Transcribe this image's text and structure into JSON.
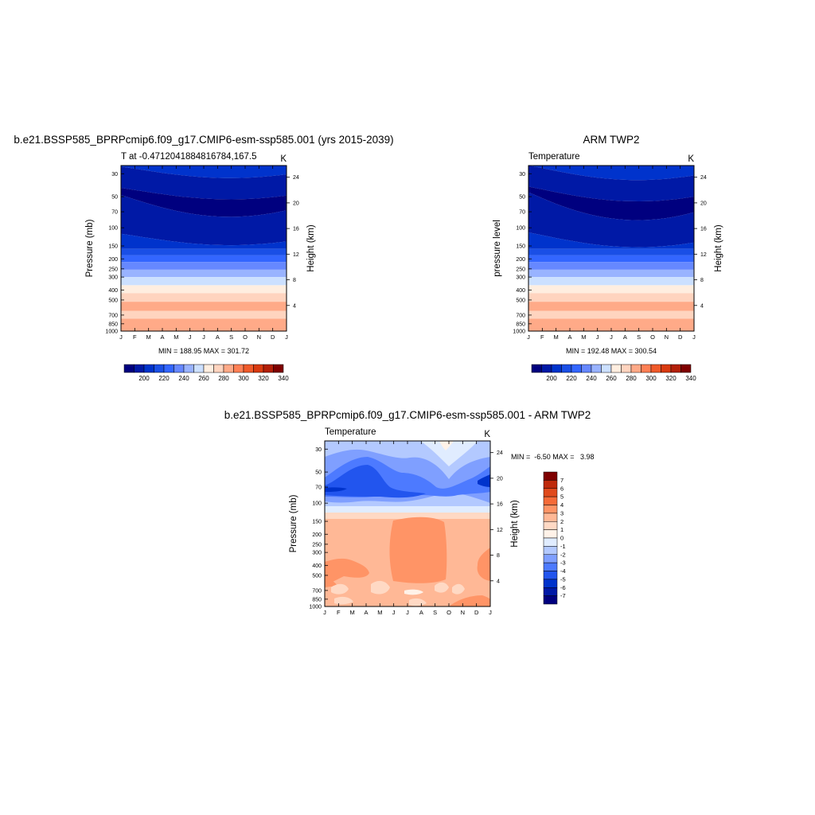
{
  "palette": {
    "temperature": [
      "#00007f",
      "#0019a6",
      "#0033cc",
      "#1a4fe6",
      "#3366ff",
      "#6688ff",
      "#99b3ff",
      "#cce0ff",
      "#ffeee0",
      "#ffd4bf",
      "#ffaa88",
      "#ff8055",
      "#f05a2a",
      "#d93a10",
      "#b31f08",
      "#7f0000"
    ],
    "difference": [
      "#00007f",
      "#0019a6",
      "#0033cc",
      "#2255ee",
      "#4d7aff",
      "#7f9fff",
      "#b3c9ff",
      "#e0ecff",
      "#fff2e8",
      "#ffd9c4",
      "#ffb896",
      "#ff9466",
      "#f56b38",
      "#e04a1c",
      "#bf2a0b",
      "#7f0000"
    ]
  },
  "chart_data": [
    {
      "type": "heatmap",
      "id": "model",
      "title": "b.e21.BSSP585_BPRPcmip6.f09_g17.CMIP6-esm-ssp585.001 (yrs 2015-2039)",
      "left_label": "T at -0.4712041884816784,167.5",
      "right_label": "K",
      "ylabel": "Pressure (mb)",
      "ylabel_right": "Height (km)",
      "x_ticks": [
        "J",
        "F",
        "M",
        "A",
        "M",
        "J",
        "J",
        "A",
        "S",
        "O",
        "N",
        "D",
        "J"
      ],
      "y_ticks": [
        30,
        50,
        70,
        100,
        150,
        200,
        250,
        300,
        400,
        500,
        700,
        850,
        1000
      ],
      "y_right_ticks": [
        24,
        20,
        16,
        12,
        8,
        4
      ],
      "stats": "MIN = 188.95 MAX = 301.72",
      "colorbar": {
        "levels": [
          200,
          220,
          240,
          260,
          280,
          300,
          320,
          340
        ],
        "labels": [
          "200",
          "220",
          "240",
          "260",
          "280",
          "300",
          "320",
          "340"
        ]
      }
    },
    {
      "type": "heatmap",
      "id": "obs",
      "title": "ARM TWP2",
      "left_label": "Temperature",
      "right_label": "K",
      "ylabel": "pressure level",
      "ylabel_right": "Height (km)",
      "x_ticks": [
        "J",
        "F",
        "M",
        "A",
        "M",
        "J",
        "J",
        "A",
        "S",
        "O",
        "N",
        "D",
        "J"
      ],
      "y_ticks": [
        30,
        50,
        70,
        100,
        150,
        200,
        250,
        300,
        400,
        500,
        700,
        850,
        1000
      ],
      "y_right_ticks": [
        24,
        20,
        16,
        12,
        8,
        4
      ],
      "stats": "MIN = 192.48 MAX = 300.54",
      "colorbar": {
        "levels": [
          200,
          220,
          240,
          260,
          280,
          300,
          320,
          340
        ],
        "labels": [
          "200",
          "220",
          "240",
          "260",
          "280",
          "300",
          "320",
          "340"
        ]
      }
    },
    {
      "type": "heatmap",
      "id": "diff",
      "title": "b.e21.BSSP585_BPRPcmip6.f09_g17.CMIP6-esm-ssp585.001 - ARM TWP2",
      "left_label": "Temperature",
      "right_label": "K",
      "ylabel": "Pressure (mb)",
      "ylabel_right": "Height (km)",
      "x_ticks": [
        "J",
        "F",
        "M",
        "A",
        "M",
        "J",
        "J",
        "A",
        "S",
        "O",
        "N",
        "D",
        "J"
      ],
      "y_ticks": [
        30,
        50,
        70,
        100,
        150,
        200,
        250,
        300,
        400,
        500,
        700,
        850,
        1000
      ],
      "y_right_ticks": [
        24,
        20,
        16,
        12,
        8,
        4
      ],
      "stats": "MIN =  -6.50 MAX =   3.98",
      "colorbar": {
        "levels": [
          7,
          6,
          5,
          4,
          3,
          2,
          1,
          0,
          -1,
          -2,
          -3,
          -4,
          -5,
          -6,
          -7
        ],
        "labels": [
          "7",
          "6",
          "5",
          "4",
          "3",
          "2",
          "1",
          "0",
          "-1",
          "-2",
          "-3",
          "-4",
          "-5",
          "-6",
          "-7"
        ]
      }
    }
  ]
}
